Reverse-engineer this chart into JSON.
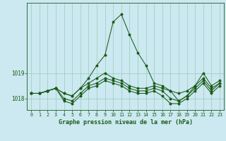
{
  "title": "Graphe pression niveau de la mer (hPa)",
  "background_color": "#cce8f0",
  "grid_color": "#99ccbb",
  "line_color": "#1a5c1a",
  "x_labels": [
    "0",
    "1",
    "2",
    "3",
    "4",
    "5",
    "6",
    "7",
    "8",
    "9",
    "10",
    "11",
    "12",
    "13",
    "14",
    "15",
    "16",
    "17",
    "18",
    "19",
    "20",
    "21",
    "22",
    "23"
  ],
  "series": [
    [
      1018.2,
      1018.2,
      1018.3,
      1018.4,
      1018.2,
      1018.1,
      1018.4,
      1018.8,
      1019.3,
      1019.7,
      1021.0,
      1021.3,
      1020.5,
      1019.8,
      1019.3,
      1018.6,
      1018.5,
      1018.3,
      1017.9,
      1018.1,
      1018.5,
      1019.0,
      1018.5,
      1018.7
    ],
    [
      1018.2,
      1018.2,
      1018.3,
      1018.4,
      1018.2,
      1018.1,
      1018.4,
      1018.6,
      1018.8,
      1019.0,
      1018.8,
      1018.7,
      1018.5,
      1018.4,
      1018.4,
      1018.5,
      1018.4,
      1018.3,
      1018.2,
      1018.3,
      1018.5,
      1018.8,
      1018.4,
      1018.6
    ],
    [
      1018.2,
      1018.2,
      1018.3,
      1018.4,
      1018.0,
      1017.9,
      1018.2,
      1018.5,
      1018.6,
      1018.8,
      1018.7,
      1018.6,
      1018.4,
      1018.3,
      1018.3,
      1018.4,
      1018.3,
      1018.0,
      1017.9,
      1018.1,
      1018.4,
      1018.7,
      1018.3,
      1018.6
    ],
    [
      1018.2,
      1018.2,
      1018.3,
      1018.4,
      1017.9,
      1017.8,
      1018.1,
      1018.4,
      1018.5,
      1018.7,
      1018.6,
      1018.5,
      1018.3,
      1018.2,
      1018.2,
      1018.3,
      1018.1,
      1017.8,
      1017.8,
      1018.0,
      1018.3,
      1018.6,
      1018.2,
      1018.5
    ]
  ],
  "ylim": [
    1017.55,
    1021.75
  ],
  "yticks": [
    1018,
    1019
  ],
  "ylabel_fontsize": 5.5,
  "xlabel_fontsize": 4.8,
  "title_fontsize": 6.0,
  "marker_size": 1.8,
  "linewidth": 0.75
}
